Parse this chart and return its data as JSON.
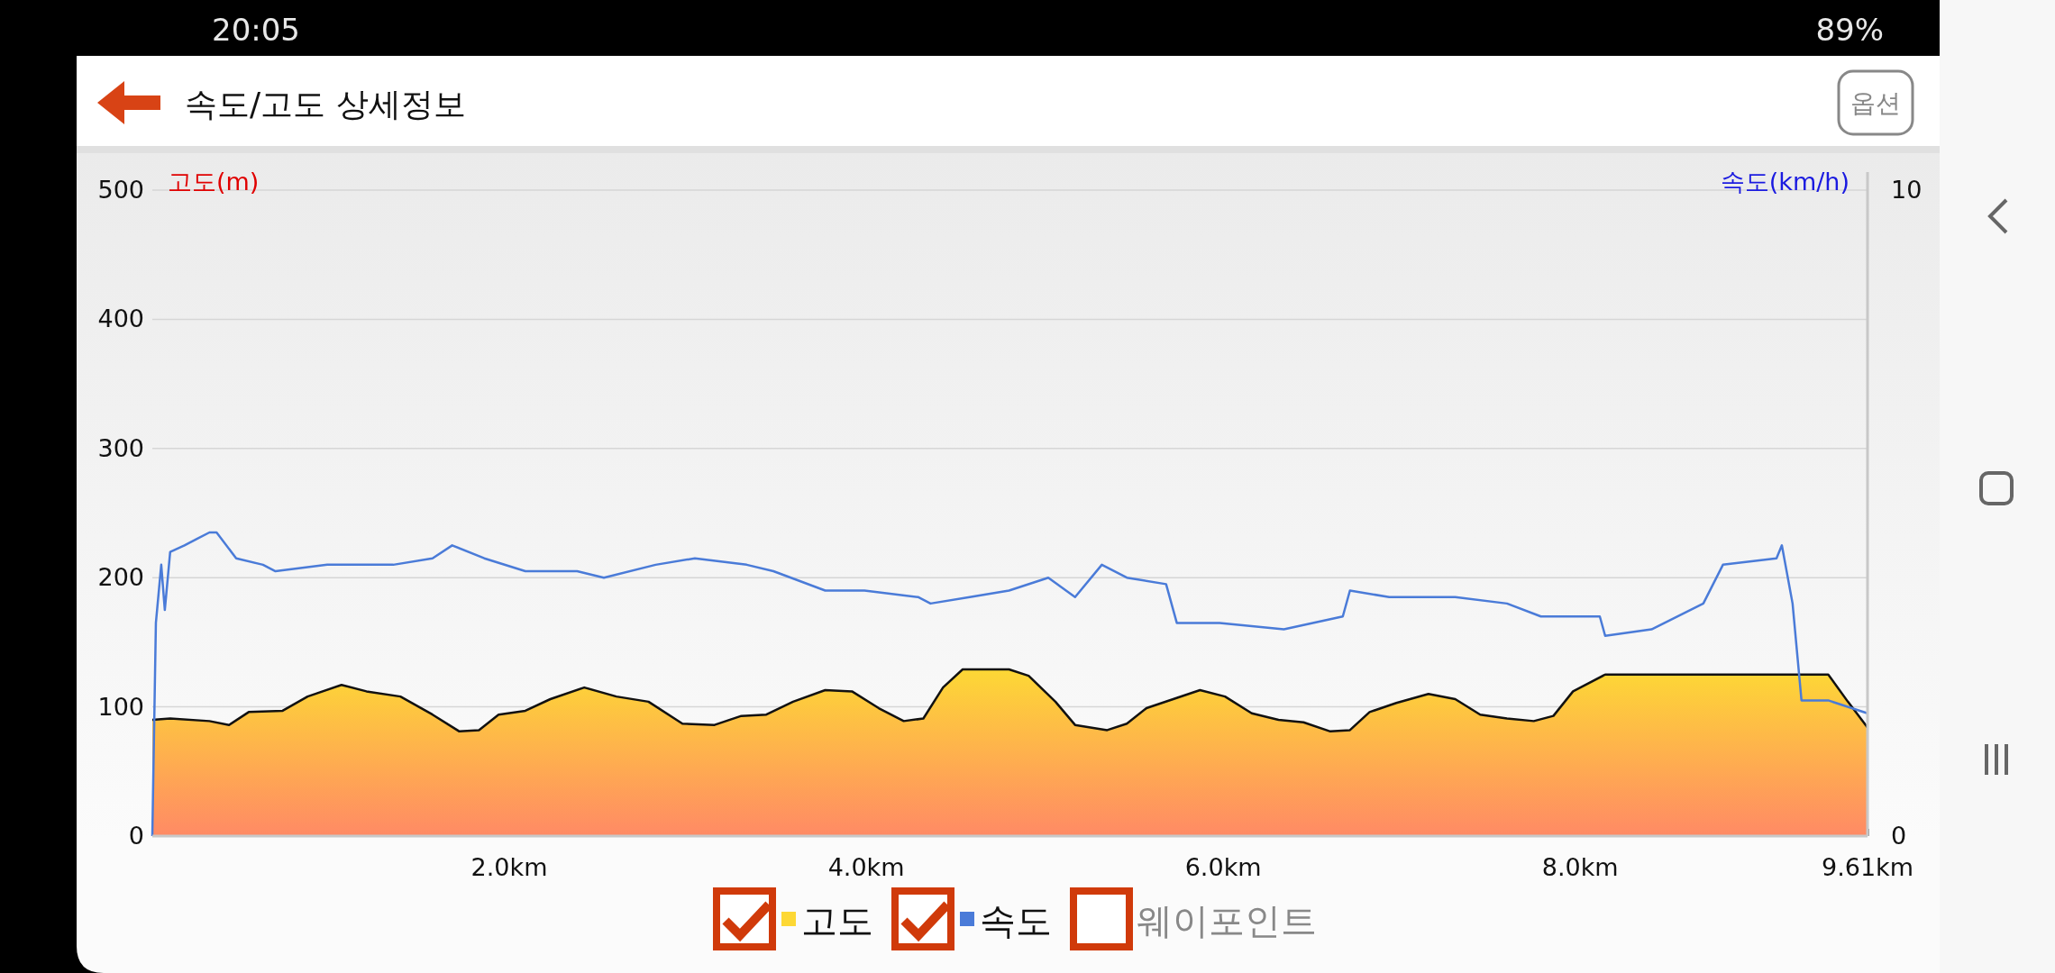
{
  "chart_data": {
    "type": "area",
    "title": "속도/고도 상세정보",
    "ylabel": "고도(m)",
    "y2label": "속도(km/h)",
    "xlim": [
      0,
      9.61
    ],
    "xticks": [
      {
        "value": 2,
        "label": "2.0km"
      },
      {
        "value": 4,
        "label": "4.0km"
      },
      {
        "value": 6,
        "label": "6.0km"
      },
      {
        "value": 8,
        "label": "8.0km"
      },
      {
        "value": 9.61,
        "label": "9.61km"
      }
    ],
    "ylim": [
      0,
      500
    ],
    "yticks": [
      0,
      100,
      200,
      300,
      400,
      500
    ],
    "y2lim": [
      0,
      10
    ],
    "y2ticks": [
      0,
      10
    ],
    "grid": "y",
    "legend": "bottom",
    "annotations": [
      "옵션",
      "웨이포인트",
      "20:05",
      "89%"
    ],
    "series": [
      {
        "name": "고도",
        "color": "#fdd835",
        "x": [
          0,
          0.1,
          0.32,
          0.43,
          0.54,
          0.73,
          0.87,
          1.06,
          1.2,
          1.39,
          1.57,
          1.72,
          1.83,
          1.94,
          2.09,
          2.23,
          2.42,
          2.6,
          2.78,
          2.97,
          3.15,
          3.3,
          3.44,
          3.59,
          3.77,
          3.92,
          4.07,
          4.21,
          4.32,
          4.43,
          4.54,
          4.8,
          4.91,
          5.06,
          5.17,
          5.35,
          5.46,
          5.57,
          5.72,
          5.87,
          6.01,
          6.16,
          6.31,
          6.45,
          6.6,
          6.71,
          6.82,
          6.97,
          7.15,
          7.3,
          7.44,
          7.59,
          7.74,
          7.85,
          7.96,
          8.14,
          8.4,
          8.69,
          8.99,
          9.21,
          9.39,
          9.5,
          9.61
        ],
        "values": [
          90,
          91,
          89,
          86,
          96,
          97,
          108,
          117,
          112,
          108,
          94,
          81,
          82,
          94,
          97,
          106,
          115,
          108,
          104,
          87,
          86,
          93,
          94,
          104,
          113,
          112,
          99,
          89,
          91,
          115,
          129,
          129,
          124,
          104,
          86,
          82,
          87,
          99,
          106,
          113,
          108,
          95,
          90,
          88,
          81,
          82,
          96,
          103,
          110,
          106,
          94,
          91,
          89,
          93,
          112,
          125,
          125,
          125,
          125,
          125,
          125,
          104,
          84
        ]
      },
      {
        "name": "속도",
        "type": "line",
        "axis": "y2",
        "color": "#4a7bd8",
        "x": [
          0,
          0.02,
          0.05,
          0.07,
          0.1,
          0.18,
          0.25,
          0.32,
          0.36,
          0.47,
          0.62,
          0.69,
          0.98,
          1.35,
          1.57,
          1.68,
          1.86,
          2.09,
          2.38,
          2.53,
          2.82,
          3.04,
          3.33,
          3.48,
          3.77,
          3.99,
          4.29,
          4.36,
          4.58,
          4.8,
          5.02,
          5.17,
          5.32,
          5.46,
          5.68,
          5.74,
          5.98,
          6.34,
          6.67,
          6.71,
          6.93,
          7.3,
          7.59,
          7.78,
          8.11,
          8.14,
          8.4,
          8.69,
          8.8,
          9.1,
          9.13,
          9.19,
          9.24,
          9.39,
          9.61
        ],
        "values": [
          0,
          3.3,
          4.2,
          3.5,
          4.4,
          4.5,
          4.6,
          4.7,
          4.7,
          4.3,
          4.2,
          4.1,
          4.2,
          4.2,
          4.3,
          4.5,
          4.3,
          4.1,
          4.1,
          4.0,
          4.2,
          4.3,
          4.2,
          4.1,
          3.8,
          3.8,
          3.7,
          3.6,
          3.7,
          3.8,
          4.0,
          3.7,
          4.2,
          4.0,
          3.9,
          3.3,
          3.3,
          3.2,
          3.4,
          3.8,
          3.7,
          3.7,
          3.6,
          3.4,
          3.4,
          3.1,
          3.2,
          3.6,
          4.2,
          4.3,
          4.5,
          3.6,
          2.1,
          2.1,
          1.9
        ]
      }
    ]
  }
}
